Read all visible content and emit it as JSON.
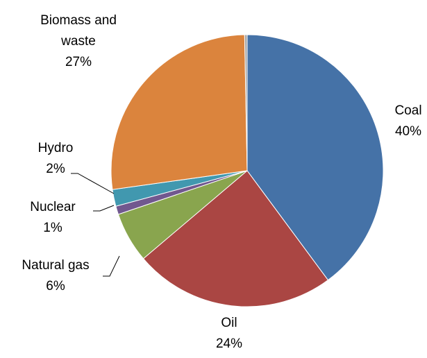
{
  "chart_data": {
    "type": "pie",
    "categories": [
      "Coal",
      "Oil",
      "Natural gas",
      "Nuclear",
      "Hydro",
      "Biomass and waste",
      null
    ],
    "values": [
      40,
      24,
      6,
      1,
      2,
      27,
      0.3
    ],
    "value_labels": [
      "40%",
      "24%",
      "6%",
      "1%",
      "2%",
      "27%",
      null
    ],
    "colors": [
      "#4572a7",
      "#aa4643",
      "#89a54e",
      "#71588f",
      "#4198af",
      "#db843d",
      "#a6a6a6"
    ]
  }
}
